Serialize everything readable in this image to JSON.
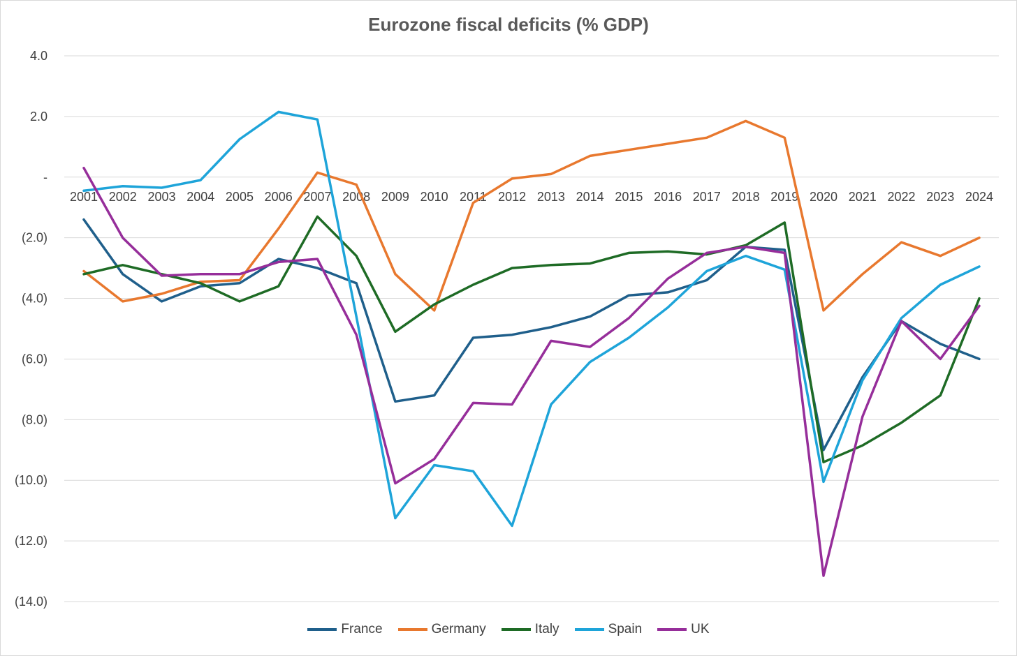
{
  "chart_data": {
    "type": "line",
    "title": "Eurozone fiscal deficits (% GDP)",
    "xlabel": "",
    "ylabel": "",
    "ylim": [
      -14,
      4
    ],
    "yticks": [
      {
        "value": 4,
        "label": "4.0"
      },
      {
        "value": 2,
        "label": "2.0"
      },
      {
        "value": 0,
        "label": "-"
      },
      {
        "value": -2,
        "label": "(2.0)"
      },
      {
        "value": -4,
        "label": "(4.0)"
      },
      {
        "value": -6,
        "label": "(6.0)"
      },
      {
        "value": -8,
        "label": "(8.0)"
      },
      {
        "value": -10,
        "label": "(10.0)"
      },
      {
        "value": -12,
        "label": "(12.0)"
      },
      {
        "value": -14,
        "label": "(14.0)"
      }
    ],
    "categories": [
      "2001",
      "2002",
      "2003",
      "2004",
      "2005",
      "2006",
      "2007",
      "2008",
      "2009",
      "2010",
      "2011",
      "2012",
      "2013",
      "2014",
      "2015",
      "2016",
      "2017",
      "2018",
      "2019",
      "2020",
      "2021",
      "2022",
      "2023",
      "2024"
    ],
    "grid": true,
    "legend_position": "bottom",
    "series": [
      {
        "name": "France",
        "color": "#1f5f8b",
        "values": [
          -1.4,
          -3.2,
          -4.1,
          -3.6,
          -3.5,
          -2.7,
          -3.0,
          -3.5,
          -7.4,
          -7.2,
          -5.3,
          -5.2,
          -4.95,
          -4.6,
          -3.9,
          -3.8,
          -3.4,
          -2.3,
          -2.4,
          -9.0,
          -6.6,
          -4.75,
          -5.5,
          -6.0
        ]
      },
      {
        "name": "Germany",
        "color": "#e8782e",
        "values": [
          -3.1,
          -4.1,
          -3.85,
          -3.45,
          -3.4,
          -1.7,
          0.15,
          -0.25,
          -3.2,
          -4.4,
          -0.85,
          -0.05,
          0.1,
          0.7,
          0.9,
          1.1,
          1.3,
          1.85,
          1.3,
          -4.4,
          -3.2,
          -2.15,
          -2.6,
          -2.0
        ]
      },
      {
        "name": "Italy",
        "color": "#1e6b25",
        "values": [
          -3.2,
          -2.9,
          -3.2,
          -3.5,
          -4.1,
          -3.6,
          -1.3,
          -2.6,
          -5.1,
          -4.2,
          -3.55,
          -3.0,
          -2.9,
          -2.85,
          -2.5,
          -2.45,
          -2.55,
          -2.25,
          -1.5,
          -9.4,
          -8.85,
          -8.1,
          -7.2,
          -4.0
        ]
      },
      {
        "name": "Spain",
        "color": "#1ea4d9",
        "values": [
          -0.45,
          -0.3,
          -0.35,
          -0.1,
          1.25,
          2.15,
          1.9,
          -4.6,
          -11.25,
          -9.5,
          -9.7,
          -11.5,
          -7.5,
          -6.1,
          -5.3,
          -4.3,
          -3.1,
          -2.6,
          -3.05,
          -10.05,
          -6.7,
          -4.65,
          -3.55,
          -2.95
        ]
      },
      {
        "name": "UK",
        "color": "#962e9a",
        "values": [
          0.3,
          -2.0,
          -3.25,
          -3.2,
          -3.2,
          -2.8,
          -2.7,
          -5.2,
          -10.1,
          -9.3,
          -7.45,
          -7.5,
          -5.4,
          -5.6,
          -4.65,
          -3.35,
          -2.5,
          -2.3,
          -2.5,
          -13.15,
          -7.9,
          -4.75,
          -6.0,
          -4.25
        ]
      }
    ]
  }
}
